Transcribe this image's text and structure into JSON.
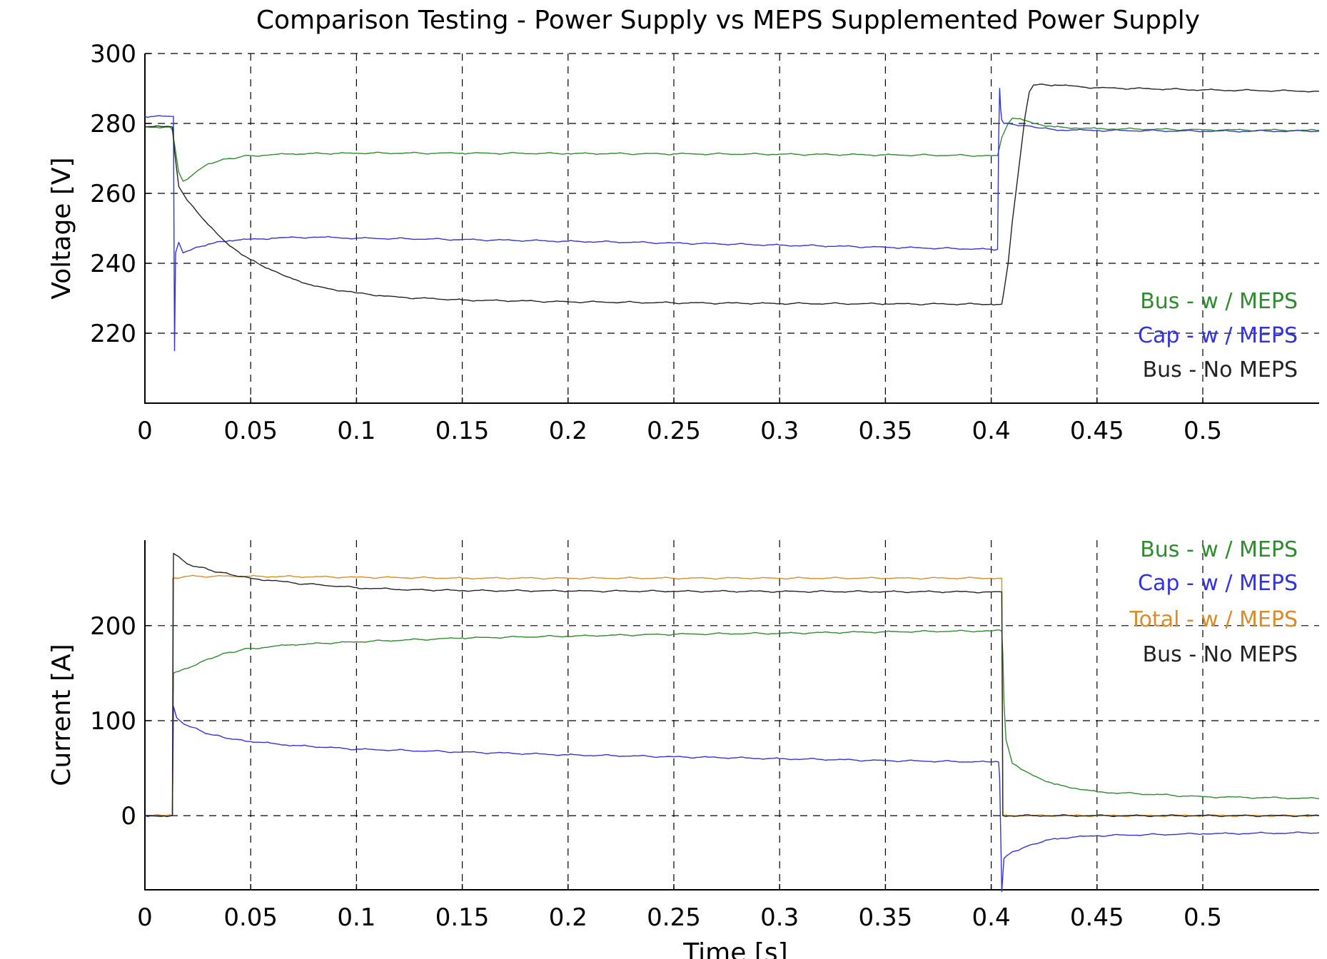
{
  "figure": {
    "title": "Comparison Testing - Power Supply vs MEPS Supplemented Power Supply"
  },
  "chart_data": [
    {
      "type": "line",
      "ylabel": "Voltage [V]",
      "xlabel": "",
      "xlim": [
        0,
        0.555
      ],
      "ylim": [
        200,
        300
      ],
      "xticks": [
        "0",
        "0.05",
        "0.1",
        "0.15",
        "0.2",
        "0.25",
        "0.3",
        "0.35",
        "0.4",
        "0.45",
        "0.5"
      ],
      "xtick_values": [
        0,
        0.05,
        0.1,
        0.15,
        0.2,
        0.25,
        0.3,
        0.35,
        0.4,
        0.45,
        0.5
      ],
      "yticks": [
        "220",
        "240",
        "260",
        "280",
        "300"
      ],
      "ytick_values": [
        220,
        240,
        260,
        280,
        300
      ],
      "grid": true,
      "legend_position": "lower-right",
      "series": [
        {
          "name": "Bus - w / MEPS",
          "color": "#2e8b2e",
          "points": [
            [
              0,
              279
            ],
            [
              0.012,
              279
            ],
            [
              0.013,
              278
            ],
            [
              0.0145,
              272
            ],
            [
              0.016,
              266
            ],
            [
              0.018,
              263.5
            ],
            [
              0.02,
              264
            ],
            [
              0.025,
              266.5
            ],
            [
              0.03,
              268.5
            ],
            [
              0.04,
              270
            ],
            [
              0.05,
              270.8
            ],
            [
              0.07,
              271.3
            ],
            [
              0.1,
              271.5
            ],
            [
              0.15,
              271.5
            ],
            [
              0.2,
              271.4
            ],
            [
              0.25,
              271.3
            ],
            [
              0.3,
              271.2
            ],
            [
              0.35,
              271.0
            ],
            [
              0.4,
              270.8
            ],
            [
              0.403,
              270.8
            ],
            [
              0.405,
              276
            ],
            [
              0.408,
              280
            ],
            [
              0.41,
              281.5
            ],
            [
              0.415,
              281
            ],
            [
              0.42,
              280
            ],
            [
              0.43,
              279
            ],
            [
              0.45,
              278.5
            ],
            [
              0.5,
              278.2
            ],
            [
              0.555,
              278
            ]
          ]
        },
        {
          "name": "Cap - w / MEPS",
          "color": "#3333dd",
          "points": [
            [
              0,
              282
            ],
            [
              0.0135,
              282
            ],
            [
              0.014,
              215
            ],
            [
              0.0145,
              243
            ],
            [
              0.016,
              246
            ],
            [
              0.018,
              243
            ],
            [
              0.02,
              243.5
            ],
            [
              0.03,
              245.5
            ],
            [
              0.04,
              246.5
            ],
            [
              0.06,
              247.2
            ],
            [
              0.08,
              247.5
            ],
            [
              0.1,
              247.2
            ],
            [
              0.15,
              246.8
            ],
            [
              0.2,
              246.3
            ],
            [
              0.25,
              245.8
            ],
            [
              0.3,
              245.2
            ],
            [
              0.35,
              244.6
            ],
            [
              0.4,
              244.0
            ],
            [
              0.403,
              244.0
            ],
            [
              0.4035,
              275
            ],
            [
              0.404,
              290
            ],
            [
              0.4045,
              284
            ],
            [
              0.405,
              281
            ],
            [
              0.406,
              280
            ],
            [
              0.41,
              279.8
            ],
            [
              0.42,
              279
            ],
            [
              0.43,
              278.2
            ],
            [
              0.45,
              278
            ],
            [
              0.5,
              277.8
            ],
            [
              0.555,
              277.8
            ]
          ]
        },
        {
          "name": "Bus - No MEPS",
          "color": "#222222",
          "points": [
            [
              0,
              279
            ],
            [
              0.013,
              279
            ],
            [
              0.014,
              272
            ],
            [
              0.016,
              262
            ],
            [
              0.02,
              258
            ],
            [
              0.03,
              251
            ],
            [
              0.04,
              245
            ],
            [
              0.05,
              241
            ],
            [
              0.06,
              238
            ],
            [
              0.07,
              235.5
            ],
            [
              0.08,
              233.5
            ],
            [
              0.1,
              231.5
            ],
            [
              0.12,
              230.3
            ],
            [
              0.15,
              229.5
            ],
            [
              0.2,
              229
            ],
            [
              0.25,
              228.7
            ],
            [
              0.3,
              228.5
            ],
            [
              0.35,
              228.4
            ],
            [
              0.4,
              228.3
            ],
            [
              0.405,
              228.3
            ],
            [
              0.406,
              232
            ],
            [
              0.408,
              240
            ],
            [
              0.41,
              252
            ],
            [
              0.412,
              262
            ],
            [
              0.414,
              272
            ],
            [
              0.416,
              282
            ],
            [
              0.418,
              289
            ],
            [
              0.42,
              291
            ],
            [
              0.43,
              291
            ],
            [
              0.45,
              290.2
            ],
            [
              0.5,
              289.6
            ],
            [
              0.555,
              289.2
            ]
          ]
        }
      ]
    },
    {
      "type": "line",
      "ylabel": "Current [A]",
      "xlabel": "Time [s]",
      "xlim": [
        0,
        0.555
      ],
      "ylim": [
        -78,
        290
      ],
      "xticks": [
        "0",
        "0.05",
        "0.1",
        "0.15",
        "0.2",
        "0.25",
        "0.3",
        "0.35",
        "0.4",
        "0.45",
        "0.5"
      ],
      "xtick_values": [
        0,
        0.05,
        0.1,
        0.15,
        0.2,
        0.25,
        0.3,
        0.35,
        0.4,
        0.45,
        0.5
      ],
      "yticks": [
        "0",
        "100",
        "200"
      ],
      "ytick_values": [
        0,
        100,
        200
      ],
      "grid": true,
      "legend_position": "top-right",
      "series": [
        {
          "name": "Bus - w / MEPS",
          "color": "#2e8b2e",
          "points": [
            [
              0,
              0
            ],
            [
              0.013,
              0
            ],
            [
              0.0135,
              150
            ],
            [
              0.016,
              152
            ],
            [
              0.02,
              155
            ],
            [
              0.03,
              165
            ],
            [
              0.04,
              172
            ],
            [
              0.05,
              176
            ],
            [
              0.07,
              180
            ],
            [
              0.1,
              183
            ],
            [
              0.15,
              187
            ],
            [
              0.2,
              189
            ],
            [
              0.25,
              191
            ],
            [
              0.3,
              192
            ],
            [
              0.35,
              193.5
            ],
            [
              0.4,
              194.5
            ],
            [
              0.405,
              194.5
            ],
            [
              0.4055,
              170
            ],
            [
              0.406,
              120
            ],
            [
              0.407,
              80
            ],
            [
              0.41,
              55
            ],
            [
              0.42,
              42
            ],
            [
              0.43,
              33
            ],
            [
              0.45,
              25
            ],
            [
              0.5,
              20
            ],
            [
              0.555,
              18
            ]
          ]
        },
        {
          "name": "Cap - w / MEPS",
          "color": "#3333dd",
          "points": [
            [
              0,
              0
            ],
            [
              0.013,
              0
            ],
            [
              0.0135,
              115
            ],
            [
              0.015,
              103
            ],
            [
              0.02,
              95
            ],
            [
              0.03,
              86
            ],
            [
              0.04,
              81
            ],
            [
              0.05,
              78
            ],
            [
              0.07,
              74
            ],
            [
              0.1,
              70
            ],
            [
              0.15,
              67
            ],
            [
              0.2,
              64
            ],
            [
              0.25,
              62
            ],
            [
              0.3,
              60
            ],
            [
              0.35,
              58
            ],
            [
              0.4,
              56.5
            ],
            [
              0.4035,
              56.5
            ],
            [
              0.404,
              40
            ],
            [
              0.405,
              -80
            ],
            [
              0.406,
              -45
            ],
            [
              0.41,
              -38
            ],
            [
              0.42,
              -30
            ],
            [
              0.43,
              -24
            ],
            [
              0.45,
              -21
            ],
            [
              0.5,
              -19
            ],
            [
              0.555,
              -18
            ]
          ]
        },
        {
          "name": "Total - w / MEPS",
          "color": "#d98c2b",
          "points": [
            [
              0,
              0
            ],
            [
              0.013,
              0
            ],
            [
              0.0132,
              250
            ],
            [
              0.02,
              252
            ],
            [
              0.05,
              252
            ],
            [
              0.1,
              251
            ],
            [
              0.15,
              250
            ],
            [
              0.2,
              250
            ],
            [
              0.25,
              250
            ],
            [
              0.3,
              250
            ],
            [
              0.35,
              250
            ],
            [
              0.4,
              250
            ],
            [
              0.405,
              250
            ],
            [
              0.4055,
              0
            ],
            [
              0.555,
              0
            ]
          ]
        },
        {
          "name": "Bus - No MEPS",
          "color": "#222222",
          "points": [
            [
              0,
              0
            ],
            [
              0.013,
              0
            ],
            [
              0.0135,
              276
            ],
            [
              0.02,
              265
            ],
            [
              0.03,
              259
            ],
            [
              0.04,
              254
            ],
            [
              0.05,
              250
            ],
            [
              0.07,
              245
            ],
            [
              0.1,
              240
            ],
            [
              0.12,
              238
            ],
            [
              0.15,
              237
            ],
            [
              0.2,
              236.5
            ],
            [
              0.25,
              236.2
            ],
            [
              0.3,
              236
            ],
            [
              0.35,
              235.8
            ],
            [
              0.4,
              235.5
            ],
            [
              0.405,
              235.5
            ],
            [
              0.4055,
              0
            ],
            [
              0.555,
              0
            ]
          ]
        }
      ]
    }
  ]
}
